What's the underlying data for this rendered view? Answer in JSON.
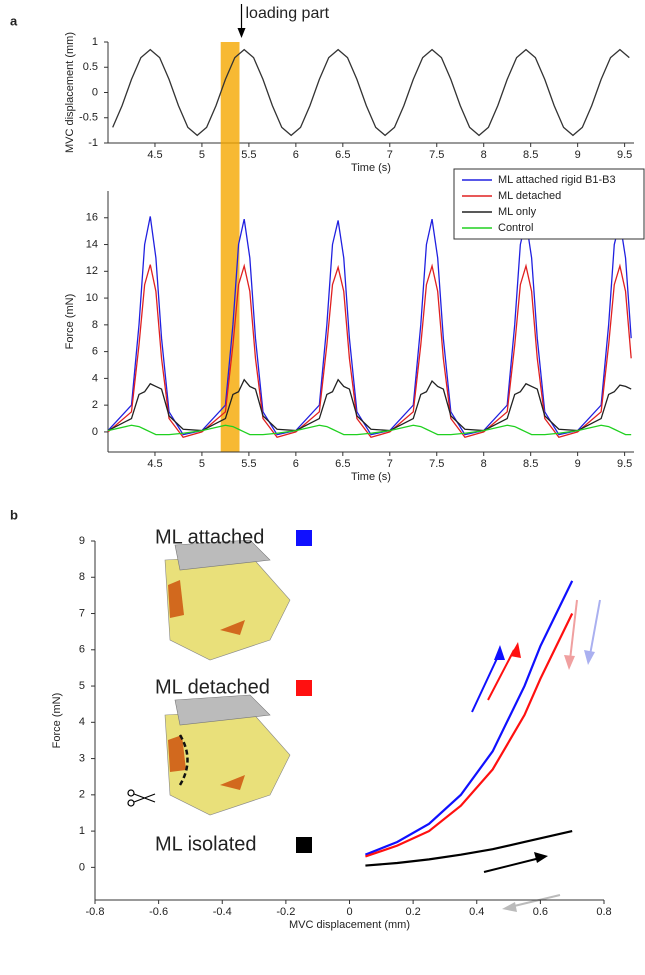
{
  "chart_data": [
    {
      "type": "line",
      "panel_label": "a",
      "annotation": "loading part",
      "highlight_x": [
        5.2,
        5.4
      ],
      "x_label": "Time (s)",
      "y_label": "MVC displacement (mm)",
      "xlim": [
        4,
        9.6
      ],
      "xticks": [
        4.5,
        5,
        5.5,
        6,
        6.5,
        7,
        7.5,
        8,
        8.5,
        9,
        9.5
      ],
      "ylim": [
        -1,
        1
      ],
      "yticks": [
        -1,
        -0.5,
        0,
        0.5,
        1
      ],
      "x": [
        4.05,
        4.15,
        4.25,
        4.35,
        4.45,
        4.55,
        4.65,
        4.75,
        4.85,
        4.95,
        5.05,
        5.15,
        5.25,
        5.35,
        5.45,
        5.55,
        5.65,
        5.75,
        5.85,
        5.95,
        6.05,
        6.15,
        6.25,
        6.35,
        6.45,
        6.55,
        6.65,
        6.75,
        6.85,
        6.95,
        7.05,
        7.15,
        7.25,
        7.35,
        7.45,
        7.55,
        7.65,
        7.75,
        7.85,
        7.95,
        8.05,
        8.15,
        8.25,
        8.35,
        8.45,
        8.55,
        8.65,
        8.75,
        8.85,
        8.95,
        9.05,
        9.15,
        9.25,
        9.35,
        9.45,
        9.55
      ],
      "series": [
        {
          "color": "#333333",
          "values": [
            -0.69,
            -0.26,
            0.26,
            0.69,
            0.85,
            0.69,
            0.26,
            -0.26,
            -0.69,
            -0.85,
            -0.69,
            -0.26,
            0.26,
            0.69,
            0.85,
            0.69,
            0.26,
            -0.26,
            -0.69,
            -0.85,
            -0.69,
            -0.26,
            0.26,
            0.69,
            0.85,
            0.69,
            0.26,
            -0.26,
            -0.69,
            -0.85,
            -0.69,
            -0.26,
            0.26,
            0.69,
            0.85,
            0.69,
            0.26,
            -0.26,
            -0.69,
            -0.85,
            -0.69,
            -0.26,
            0.26,
            0.69,
            0.85,
            0.69,
            0.26,
            -0.26,
            -0.69,
            -0.85,
            -0.69,
            -0.26,
            0.26,
            0.69,
            0.85,
            0.69
          ]
        }
      ]
    },
    {
      "type": "line",
      "x_label": "Time (s)",
      "y_label": "Force (mN)",
      "legend": "upper right",
      "xlim": [
        4,
        9.6
      ],
      "xticks": [
        4.5,
        5,
        5.5,
        6,
        6.5,
        7,
        7.5,
        8,
        8.5,
        9,
        9.5
      ],
      "ylim": [
        -1.5,
        18
      ],
      "yticks": [
        0,
        2,
        4,
        6,
        8,
        10,
        12,
        14,
        16
      ],
      "x": [
        4.0,
        4.25,
        4.33,
        4.39,
        4.45,
        4.51,
        4.57,
        4.65,
        4.8,
        5.0,
        5.25,
        5.33,
        5.39,
        5.45,
        5.51,
        5.57,
        5.65,
        5.8,
        6.0,
        6.25,
        6.33,
        6.39,
        6.45,
        6.51,
        6.57,
        6.65,
        6.8,
        7.0,
        7.25,
        7.33,
        7.39,
        7.45,
        7.51,
        7.57,
        7.65,
        7.8,
        8.0,
        8.25,
        8.33,
        8.39,
        8.45,
        8.51,
        8.57,
        8.65,
        8.8,
        9.0,
        9.25,
        9.33,
        9.39,
        9.45,
        9.51,
        9.57
      ],
      "series": [
        {
          "name": "ML attached rigid B1-B3",
          "color": "#2020e0",
          "values": [
            0.1,
            2,
            8,
            14,
            16.1,
            13,
            7,
            1.5,
            -0.2,
            0.1,
            2,
            8,
            14,
            15.9,
            13,
            7,
            1.5,
            -0.2,
            0.1,
            2,
            8,
            14,
            15.8,
            13,
            7,
            1.5,
            -0.2,
            0.1,
            2,
            8,
            14,
            15.9,
            13,
            7,
            1.5,
            -0.2,
            0.1,
            2,
            8,
            14,
            15.8,
            13,
            7,
            1.5,
            -0.2,
            0.1,
            2,
            8,
            14,
            15.7,
            13,
            7
          ]
        },
        {
          "name": "ML detached",
          "color": "#e02020",
          "values": [
            0,
            1.5,
            6.5,
            11,
            12.5,
            10.5,
            5.5,
            1,
            -0.4,
            0,
            1.5,
            6.5,
            11,
            12.4,
            10.5,
            5.5,
            1,
            -0.4,
            0,
            1.5,
            6.5,
            11,
            12.3,
            10.5,
            5.5,
            1,
            -0.4,
            0,
            1.5,
            6.5,
            11,
            12.4,
            10.5,
            5.5,
            1,
            -0.4,
            0,
            1.5,
            6.5,
            11,
            12.4,
            10.5,
            5.5,
            1,
            -0.4,
            0,
            1.5,
            6.5,
            11,
            12.4,
            10.5,
            5.5
          ]
        },
        {
          "name": "ML only",
          "color": "#222222",
          "values": [
            0.1,
            1,
            2.8,
            3,
            3.6,
            3.4,
            3.2,
            1.2,
            0.2,
            0.1,
            1,
            2.8,
            3,
            3.9,
            3.4,
            3.2,
            1.2,
            0.2,
            0.1,
            1,
            2.8,
            3,
            3.9,
            3.4,
            3.2,
            1.2,
            0.2,
            0.1,
            1,
            2.8,
            3,
            3.8,
            3.4,
            3.2,
            1.2,
            0.2,
            0.1,
            1,
            2.8,
            3,
            3.6,
            3.4,
            3.2,
            1.2,
            0.2,
            0.1,
            1,
            2.8,
            3,
            3.5,
            3.4,
            3.2
          ]
        },
        {
          "name": "Control",
          "color": "#20d020",
          "values": [
            0.1,
            0.5,
            0.4,
            0.2,
            0,
            -0.2,
            -0.2,
            -0.2,
            -0.1,
            0.1,
            0.5,
            0.4,
            0.2,
            0,
            -0.2,
            -0.2,
            -0.2,
            -0.1,
            0.1,
            0.5,
            0.4,
            0.2,
            0,
            -0.2,
            -0.2,
            -0.2,
            -0.1,
            0.1,
            0.5,
            0.4,
            0.2,
            0,
            -0.2,
            -0.2,
            -0.2,
            -0.1,
            0.1,
            0.5,
            0.4,
            0.2,
            0,
            -0.2,
            -0.2,
            -0.2,
            -0.1,
            0.1,
            0.5,
            0.4,
            0.2,
            0,
            -0.2,
            -0.2
          ]
        }
      ]
    },
    {
      "type": "line",
      "panel_label": "b",
      "x_label": "MVC displacement (mm)",
      "y_label": "Force (mN)",
      "xlim": [
        -0.8,
        0.8
      ],
      "xticks": [
        -0.8,
        -0.6,
        -0.4,
        -0.2,
        0,
        0.2,
        0.4,
        0.6,
        0.8
      ],
      "ylim": [
        -0.9,
        9
      ],
      "yticks": [
        0,
        1,
        2,
        3,
        4,
        5,
        6,
        7,
        8,
        9
      ],
      "x": [
        0.05,
        0.15,
        0.25,
        0.35,
        0.45,
        0.55,
        0.6,
        0.65,
        0.7
      ],
      "series": [
        {
          "name": "ML attached",
          "color": "#1010ff",
          "values": [
            0.35,
            0.7,
            1.2,
            2.0,
            3.2,
            5.0,
            6.1,
            7.0,
            7.9
          ]
        },
        {
          "name": "ML detached",
          "color": "#ff1010",
          "values": [
            0.3,
            0.6,
            1.0,
            1.7,
            2.7,
            4.2,
            5.2,
            6.1,
            7.0
          ]
        },
        {
          "name": "ML isolated",
          "color": "#000000",
          "values": [
            0.05,
            0.12,
            0.22,
            0.35,
            0.5,
            0.7,
            0.8,
            0.9,
            1.0
          ]
        }
      ]
    }
  ]
}
